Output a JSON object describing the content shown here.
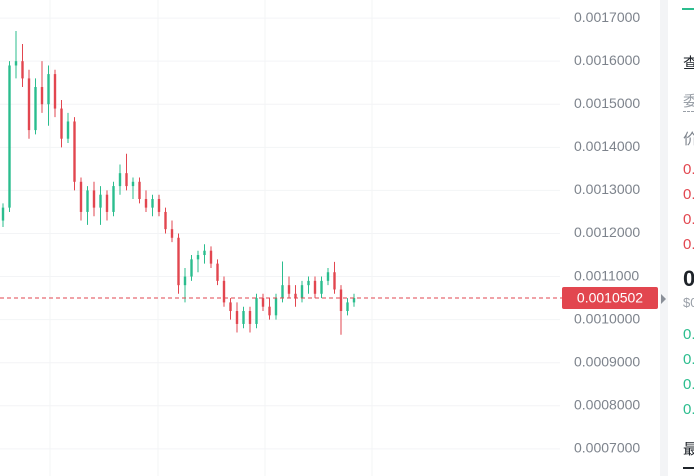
{
  "chart_data": {
    "type": "candlestick",
    "ylim": [
      0.000637,
      0.001742
    ],
    "yticks": [
      {
        "value": 0.0017,
        "label": "0.0017000"
      },
      {
        "value": 0.0016,
        "label": "0.0016000"
      },
      {
        "value": 0.0015,
        "label": "0.0015000"
      },
      {
        "value": 0.0014,
        "label": "0.0014000"
      },
      {
        "value": 0.0013,
        "label": "0.0013000"
      },
      {
        "value": 0.0012,
        "label": "0.0012000"
      },
      {
        "value": 0.0011,
        "label": "0.0011000"
      },
      {
        "value": 0.001,
        "label": "0.0010000"
      },
      {
        "value": 0.0009,
        "label": "0.0009000"
      },
      {
        "value": 0.0008,
        "label": "0.0008000"
      },
      {
        "value": 0.0007,
        "label": "0.0007000"
      }
    ],
    "grid": true,
    "up_color": "#2bbd8e",
    "down_color": "#e2464f",
    "current_price": {
      "value": 0.0010502,
      "label": "0.0010502"
    },
    "open": [
      0.00123,
      0.00126,
      0.00159,
      0.0016,
      0.00156,
      0.00144,
      0.00154,
      0.0015,
      0.00157,
      0.00149,
      0.00142,
      0.00146,
      0.00132,
      0.00125,
      0.0013,
      0.00126,
      0.00129,
      0.00125,
      0.00131,
      0.00134,
      0.00131,
      0.00132,
      0.00128,
      0.00126,
      0.00128,
      0.00125,
      0.00121,
      0.00119,
      0.00108,
      0.0011,
      0.00114,
      0.00115,
      0.00116,
      0.00113,
      0.00109,
      0.00104,
      0.00102,
      0.00099,
      0.00102,
      0.00099,
      0.00105,
      0.00103,
      0.00101,
      0.00105,
      0.00108,
      0.00106,
      0.00105,
      0.00108,
      0.00109,
      0.00106,
      0.00109,
      0.00111,
      0.00107,
      0.00102,
      0.00104
    ],
    "high": [
      0.00127,
      0.0016,
      0.00167,
      0.00164,
      0.00158,
      0.00156,
      0.0016,
      0.00159,
      0.00158,
      0.00151,
      0.00148,
      0.00147,
      0.00133,
      0.00131,
      0.00132,
      0.00131,
      0.0013,
      0.00132,
      0.00136,
      0.001385,
      0.00133,
      0.00133,
      0.0013,
      0.00129,
      0.00129,
      0.00126,
      0.00123,
      0.0012,
      0.00112,
      0.00115,
      0.00116,
      0.001175,
      0.00117,
      0.00114,
      0.0011,
      0.00105,
      0.00104,
      0.00103,
      0.00103,
      0.00106,
      0.00106,
      0.00105,
      0.00106,
      0.001135,
      0.0011,
      0.00108,
      0.00109,
      0.0011,
      0.0011,
      0.0011,
      0.00112,
      0.001134,
      0.00108,
      0.00105,
      0.00106
    ],
    "low": [
      0.001215,
      0.00125,
      0.00156,
      0.00154,
      0.00142,
      0.00143,
      0.00148,
      0.00145,
      0.00147,
      0.0014,
      0.00141,
      0.0013,
      0.00123,
      0.00122,
      0.00124,
      0.00122,
      0.00123,
      0.00124,
      0.00129,
      0.0013,
      0.00128,
      0.00127,
      0.00125,
      0.00124,
      0.00124,
      0.0012,
      0.00118,
      0.00106,
      0.00104,
      0.00109,
      0.00111,
      0.00113,
      0.00112,
      0.00108,
      0.00103,
      0.001,
      0.00097,
      0.00098,
      0.00097,
      0.00098,
      0.00102,
      0.001,
      0.001,
      0.00104,
      0.00105,
      0.00103,
      0.00104,
      0.00106,
      0.00105,
      0.00105,
      0.00108,
      0.00106,
      0.000965,
      0.00101,
      0.00103
    ],
    "close": [
      0.00126,
      0.00159,
      0.0016,
      0.00156,
      0.00144,
      0.00154,
      0.0015,
      0.00157,
      0.00149,
      0.00142,
      0.00146,
      0.00132,
      0.00125,
      0.0013,
      0.00126,
      0.00129,
      0.00125,
      0.00131,
      0.00134,
      0.00131,
      0.00132,
      0.00128,
      0.00126,
      0.00128,
      0.00125,
      0.00121,
      0.00119,
      0.00108,
      0.0011,
      0.00114,
      0.00115,
      0.00116,
      0.00113,
      0.00109,
      0.00104,
      0.00102,
      0.00099,
      0.00102,
      0.00099,
      0.00105,
      0.00103,
      0.00101,
      0.00105,
      0.00108,
      0.00106,
      0.00105,
      0.00108,
      0.00109,
      0.00106,
      0.00109,
      0.00111,
      0.00107,
      0.00102,
      0.00104,
      0.0010502
    ]
  },
  "order_book": {
    "tab": "查",
    "label_orders": "委",
    "label_price": "价",
    "asks": [
      "0.",
      "0.",
      "0.",
      "0."
    ],
    "last_price": "0",
    "last_usd": "$0",
    "bids": [
      "0.",
      "0.",
      "0.",
      "0."
    ],
    "footer": "最"
  }
}
